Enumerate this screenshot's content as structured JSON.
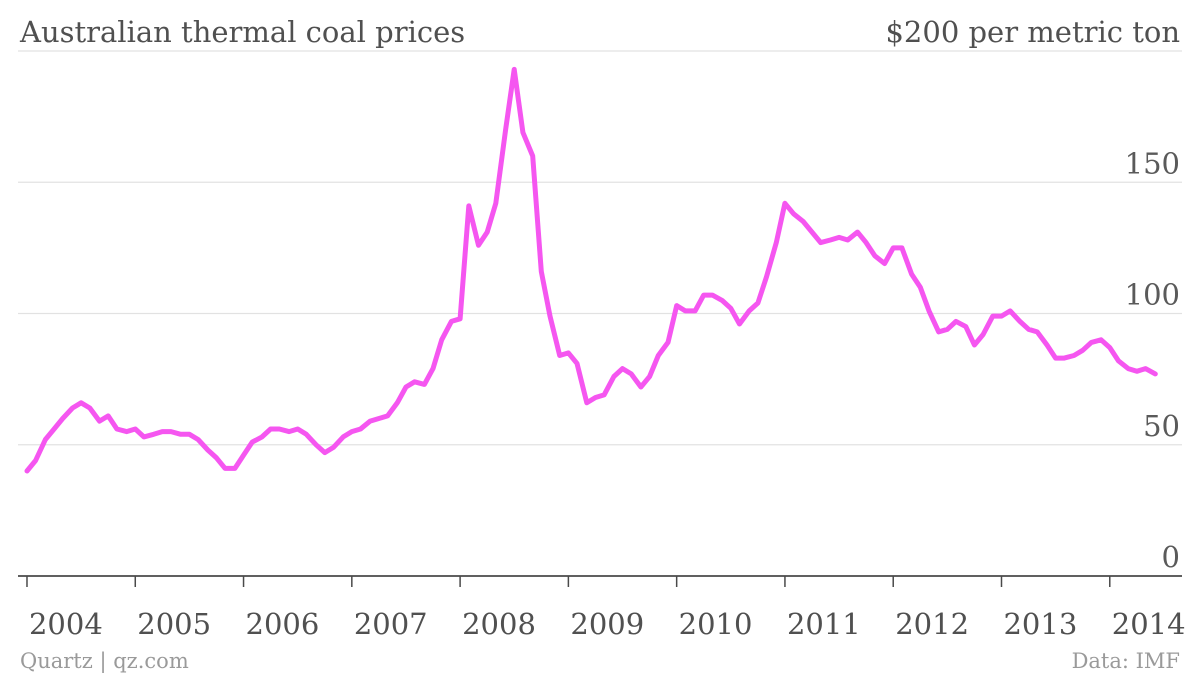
{
  "chart_data": {
    "type": "line",
    "title": "Australian thermal coal prices",
    "y_top_label": "$200 per metric ton",
    "ylim": [
      0,
      200
    ],
    "yticks": [
      0,
      50,
      100,
      150
    ],
    "xlim": [
      2003.917,
      2014.667
    ],
    "xticks": [
      2004,
      2005,
      2006,
      2007,
      2008,
      2009,
      2010,
      2011,
      2012,
      2013,
      2014
    ],
    "xtick_labels": [
      "2004",
      "2005",
      "2006",
      "2007",
      "2008",
      "2009",
      "2010",
      "2011",
      "2012",
      "2013",
      "2014"
    ],
    "grid": true,
    "color": "#f556f0",
    "series": [
      {
        "points": [
          [
            2004.0,
            40
          ],
          [
            2004.08,
            44
          ],
          [
            2004.17,
            52
          ],
          [
            2004.25,
            56
          ],
          [
            2004.33,
            60
          ],
          [
            2004.42,
            64
          ],
          [
            2004.5,
            66
          ],
          [
            2004.58,
            64
          ],
          [
            2004.67,
            59
          ],
          [
            2004.75,
            61
          ],
          [
            2004.83,
            56
          ],
          [
            2004.92,
            55
          ],
          [
            2005.0,
            56
          ],
          [
            2005.08,
            53
          ],
          [
            2005.17,
            54
          ],
          [
            2005.25,
            55
          ],
          [
            2005.33,
            55
          ],
          [
            2005.42,
            54
          ],
          [
            2005.5,
            54
          ],
          [
            2005.58,
            52
          ],
          [
            2005.67,
            48
          ],
          [
            2005.75,
            45
          ],
          [
            2005.83,
            41
          ],
          [
            2005.92,
            41
          ],
          [
            2006.0,
            46
          ],
          [
            2006.08,
            51
          ],
          [
            2006.17,
            53
          ],
          [
            2006.25,
            56
          ],
          [
            2006.33,
            56
          ],
          [
            2006.42,
            55
          ],
          [
            2006.5,
            56
          ],
          [
            2006.58,
            54
          ],
          [
            2006.67,
            50
          ],
          [
            2006.75,
            47
          ],
          [
            2006.83,
            49
          ],
          [
            2006.92,
            53
          ],
          [
            2007.0,
            55
          ],
          [
            2007.08,
            56
          ],
          [
            2007.17,
            59
          ],
          [
            2007.25,
            60
          ],
          [
            2007.33,
            61
          ],
          [
            2007.42,
            66
          ],
          [
            2007.5,
            72
          ],
          [
            2007.58,
            74
          ],
          [
            2007.67,
            73
          ],
          [
            2007.75,
            79
          ],
          [
            2007.83,
            90
          ],
          [
            2007.92,
            97
          ],
          [
            2008.0,
            98
          ],
          [
            2008.08,
            141
          ],
          [
            2008.17,
            126
          ],
          [
            2008.25,
            131
          ],
          [
            2008.33,
            142
          ],
          [
            2008.42,
            170
          ],
          [
            2008.5,
            193
          ],
          [
            2008.58,
            169
          ],
          [
            2008.67,
            160
          ],
          [
            2008.75,
            116
          ],
          [
            2008.83,
            99
          ],
          [
            2008.92,
            84
          ],
          [
            2009.0,
            85
          ],
          [
            2009.08,
            81
          ],
          [
            2009.17,
            66
          ],
          [
            2009.25,
            68
          ],
          [
            2009.33,
            69
          ],
          [
            2009.42,
            76
          ],
          [
            2009.5,
            79
          ],
          [
            2009.58,
            77
          ],
          [
            2009.67,
            72
          ],
          [
            2009.75,
            76
          ],
          [
            2009.83,
            84
          ],
          [
            2009.92,
            89
          ],
          [
            2010.0,
            103
          ],
          [
            2010.08,
            101
          ],
          [
            2010.17,
            101
          ],
          [
            2010.25,
            107
          ],
          [
            2010.33,
            107
          ],
          [
            2010.42,
            105
          ],
          [
            2010.5,
            102
          ],
          [
            2010.58,
            96
          ],
          [
            2010.67,
            101
          ],
          [
            2010.75,
            104
          ],
          [
            2010.83,
            114
          ],
          [
            2010.92,
            127
          ],
          [
            2011.0,
            142
          ],
          [
            2011.08,
            138
          ],
          [
            2011.17,
            135
          ],
          [
            2011.25,
            131
          ],
          [
            2011.33,
            127
          ],
          [
            2011.42,
            128
          ],
          [
            2011.5,
            129
          ],
          [
            2011.58,
            128
          ],
          [
            2011.67,
            131
          ],
          [
            2011.75,
            127
          ],
          [
            2011.83,
            122
          ],
          [
            2011.92,
            119
          ],
          [
            2012.0,
            125
          ],
          [
            2012.08,
            125
          ],
          [
            2012.17,
            115
          ],
          [
            2012.25,
            110
          ],
          [
            2012.33,
            101
          ],
          [
            2012.42,
            93
          ],
          [
            2012.5,
            94
          ],
          [
            2012.58,
            97
          ],
          [
            2012.67,
            95
          ],
          [
            2012.75,
            88
          ],
          [
            2012.83,
            92
          ],
          [
            2012.92,
            99
          ],
          [
            2013.0,
            99
          ],
          [
            2013.08,
            101
          ],
          [
            2013.17,
            97
          ],
          [
            2013.25,
            94
          ],
          [
            2013.33,
            93
          ],
          [
            2013.42,
            88
          ],
          [
            2013.5,
            83
          ],
          [
            2013.58,
            83
          ],
          [
            2013.67,
            84
          ],
          [
            2013.75,
            86
          ],
          [
            2013.83,
            89
          ],
          [
            2013.92,
            90
          ],
          [
            2014.0,
            87
          ],
          [
            2014.08,
            82
          ],
          [
            2014.17,
            79
          ],
          [
            2014.25,
            78
          ],
          [
            2014.33,
            79
          ],
          [
            2014.42,
            77
          ]
        ]
      }
    ]
  },
  "footer": {
    "source_left": "Quartz | qz.com",
    "source_right": "Data: IMF"
  }
}
